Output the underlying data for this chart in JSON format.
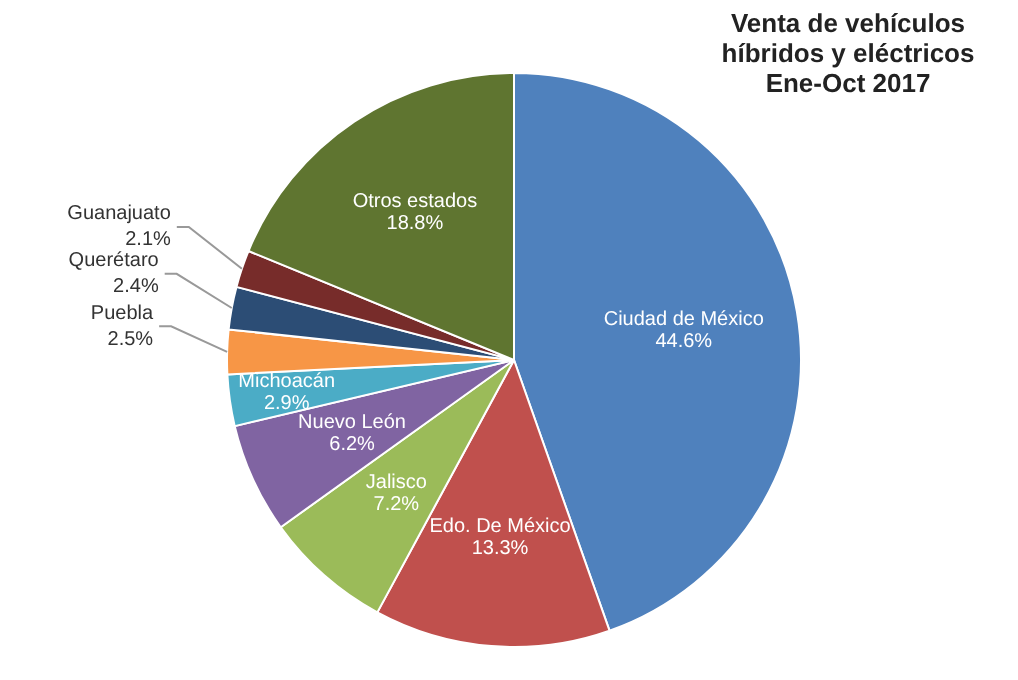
{
  "chart_data": {
    "type": "pie",
    "title": "Venta de vehículos híbridos y eléctricos",
    "subtitle": "Ene-Oct 2017",
    "categories": [
      "Ciudad de México",
      "Edo. De México",
      "Jalisco",
      "Nuevo León",
      "Michoacán",
      "Puebla",
      "Querétaro",
      "Guanajuato",
      "Otros estados"
    ],
    "values": [
      44.6,
      13.3,
      7.2,
      6.2,
      2.9,
      2.5,
      2.4,
      2.1,
      18.8
    ],
    "value_labels": [
      "44.6%",
      "13.3%",
      "7.2%",
      "6.2%",
      "2.9%",
      "2.5%",
      "2.4%",
      "2.1%",
      "18.8%"
    ],
    "colors": [
      "#4f81bd",
      "#c0504d",
      "#9bbb59",
      "#8064a2",
      "#4bacc6",
      "#f79646",
      "#2c4d75",
      "#772c2a",
      "#5f7530"
    ],
    "legend": false
  }
}
